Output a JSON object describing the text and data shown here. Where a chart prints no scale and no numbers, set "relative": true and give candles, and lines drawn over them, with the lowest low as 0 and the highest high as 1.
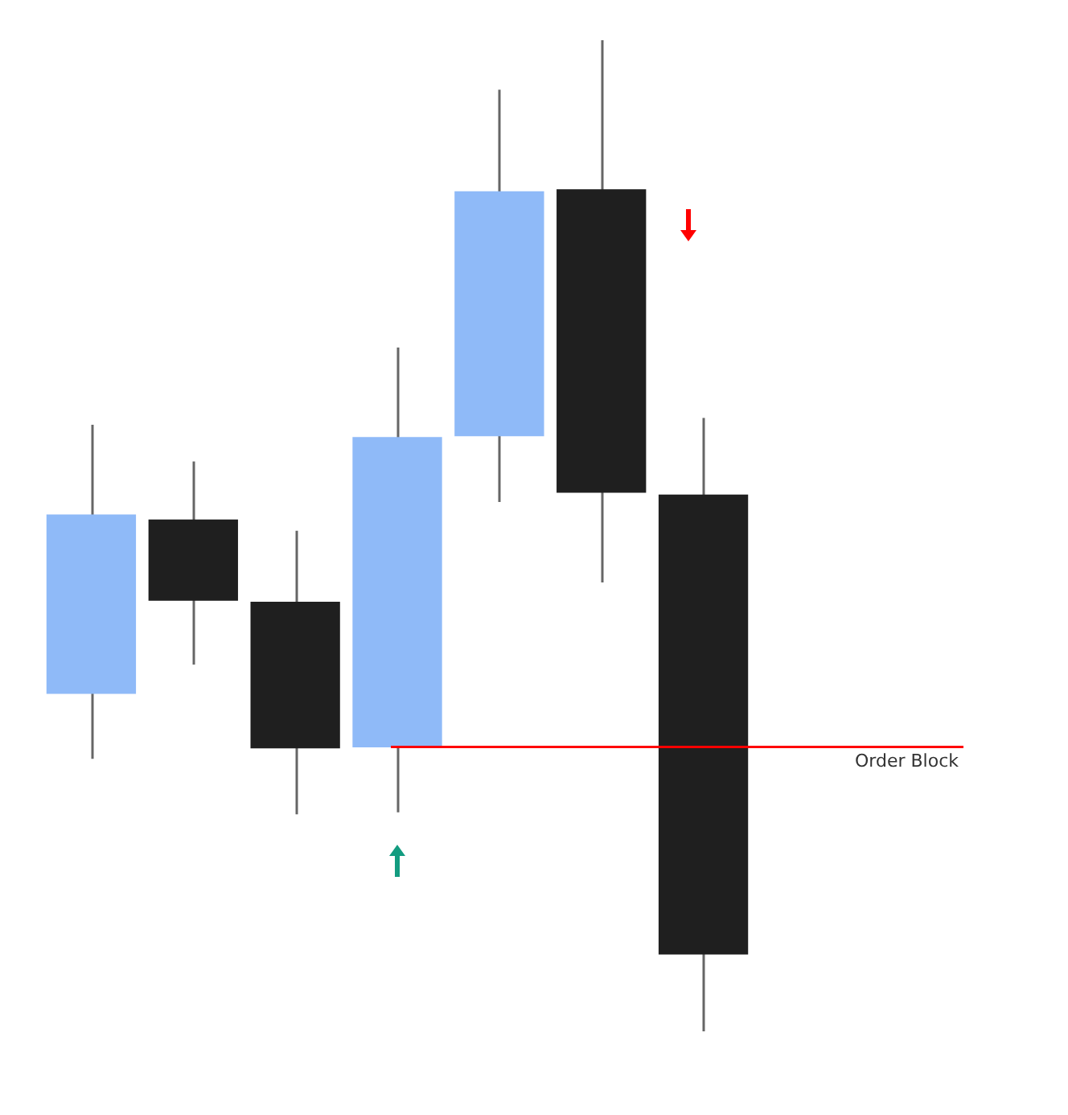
{
  "chart_data": {
    "type": "candlestick",
    "relative": true,
    "categories": [
      null,
      null,
      null,
      null,
      null,
      null,
      null
    ],
    "ohlc": [
      [
        0.341,
        0.612,
        0.275,
        0.521
      ],
      [
        0.516,
        0.575,
        0.37,
        0.435
      ],
      [
        0.433,
        0.505,
        0.219,
        0.286
      ],
      [
        0.287,
        0.69,
        0.221,
        0.599
      ],
      [
        0.601,
        0.95,
        0.534,
        0.847
      ],
      [
        0.849,
        1,
        0.453,
        0.544
      ],
      [
        0.541,
        0.619,
        0,
        0.078
      ]
    ],
    "colors": [
      "#8fbaf8",
      "#1f1f1f",
      "#1f1f1f",
      "#8fbaf8",
      "#8fbaf8",
      "#1f1f1f",
      "#1f1f1f"
    ],
    "ref_lines": [
      {
        "axis": "y",
        "value": 0.287,
        "label": "Order Block",
        "color": "#ff0000"
      }
    ],
    "legend": false
  }
}
